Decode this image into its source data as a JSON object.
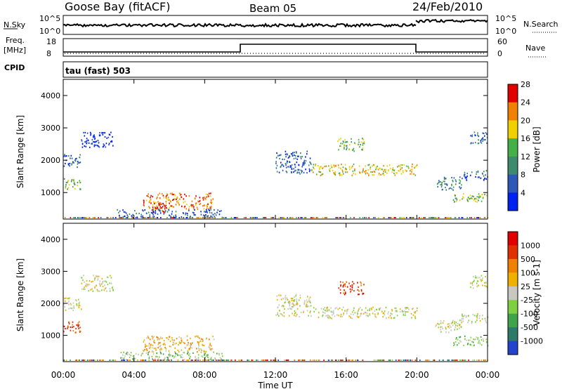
{
  "header": {
    "station": "Goose Bay (fitACF)",
    "beam": "Beam 05",
    "date": "24/Feb/2010"
  },
  "top_panels": {
    "nsky_label": "N.Sky",
    "nsky_ticks": [
      "10^5",
      "10^0"
    ],
    "nsearch_label": "N.Search",
    "nsearch_ticks": [
      "10^5",
      "10^0"
    ],
    "freq_label": "Freq.",
    "freq_unit": "[MHz]",
    "freq_ticks": [
      "18",
      "8"
    ],
    "nave_label": "Nave",
    "nave_ticks": [
      "60",
      "0"
    ],
    "cpid_label": "CPID",
    "cpid_value": "tau (fast) 503"
  },
  "chart_data": [
    {
      "type": "heatmap",
      "name": "power-panel",
      "ylabel": "Slant Range [km]",
      "xlim": [
        0,
        24
      ],
      "ylim": [
        180,
        4500
      ],
      "yticks": [
        "1000",
        "2000",
        "3000",
        "4000"
      ],
      "colorbar": {
        "label": "Power [dB]",
        "ticks": [
          "4",
          "8",
          "12",
          "16",
          "20",
          "24",
          "28"
        ],
        "colors": [
          "#0022ee",
          "#2e58b8",
          "#3e8a6e",
          "#46b048",
          "#f0d000",
          "#f08000",
          "#e00000"
        ]
      },
      "regions": [
        {
          "x": [
            0.0,
            1.0
          ],
          "y": [
            1100,
            1450
          ],
          "level": 3
        },
        {
          "x": [
            0.0,
            1.0
          ],
          "y": [
            1800,
            2200
          ],
          "level": 1
        },
        {
          "x": [
            1.0,
            2.8
          ],
          "y": [
            2400,
            2900
          ],
          "level": 0
        },
        {
          "x": [
            4.5,
            8.5
          ],
          "y": [
            500,
            1000
          ],
          "level": 5
        },
        {
          "x": [
            5.0,
            6.0
          ],
          "y": [
            400,
            700
          ],
          "level": 6
        },
        {
          "x": [
            3.0,
            9.0
          ],
          "y": [
            250,
            500
          ],
          "level": 1
        },
        {
          "x": [
            12.0,
            14.0
          ],
          "y": [
            1600,
            2300
          ],
          "level": 1
        },
        {
          "x": [
            14.0,
            20.0
          ],
          "y": [
            1550,
            1900
          ],
          "level": 4
        },
        {
          "x": [
            15.5,
            17.0
          ],
          "y": [
            2300,
            2700
          ],
          "level": 3
        },
        {
          "x": [
            21.0,
            22.5
          ],
          "y": [
            1100,
            1500
          ],
          "level": 2
        },
        {
          "x": [
            22.0,
            24.0
          ],
          "y": [
            700,
            1000
          ],
          "level": 3
        },
        {
          "x": [
            22.5,
            24.0
          ],
          "y": [
            1400,
            1700
          ],
          "level": 1
        },
        {
          "x": [
            23.0,
            24.0
          ],
          "y": [
            2500,
            2900
          ],
          "level": 1
        }
      ]
    },
    {
      "type": "heatmap",
      "name": "velocity-panel",
      "xlabel": "Time UT",
      "ylabel": "Slant Range [km]",
      "xlim": [
        0,
        24
      ],
      "ylim": [
        180,
        4500
      ],
      "xticks": [
        "00:00",
        "04:00",
        "08:00",
        "12:00",
        "16:00",
        "20:00",
        "00:00"
      ],
      "yticks": [
        "1000",
        "2000",
        "3000",
        "4000"
      ],
      "colorbar": {
        "label": "Velocity [m s-1]",
        "ticks": [
          "1000",
          "500",
          "100",
          "25",
          "-25",
          "-100",
          "-500",
          "-1000"
        ],
        "colors": [
          "#2244cc",
          "#2e7a6a",
          "#3fa34a",
          "#7fd040",
          "#c8c8c0",
          "#f0b000",
          "#f08000",
          "#e03000",
          "#e00000"
        ]
      },
      "regions": [
        {
          "x": [
            0.0,
            1.0
          ],
          "y": [
            1100,
            1450
          ],
          "level": 7
        },
        {
          "x": [
            0.0,
            1.0
          ],
          "y": [
            1800,
            2200
          ],
          "level": 4
        },
        {
          "x": [
            1.0,
            2.8
          ],
          "y": [
            2400,
            2900
          ],
          "level": 4
        },
        {
          "x": [
            4.5,
            8.5
          ],
          "y": [
            500,
            1000
          ],
          "level": 5
        },
        {
          "x": [
            3.0,
            9.0
          ],
          "y": [
            250,
            500
          ],
          "level": 3
        },
        {
          "x": [
            12.0,
            14.0
          ],
          "y": [
            1600,
            2300
          ],
          "level": 4
        },
        {
          "x": [
            14.0,
            20.0
          ],
          "y": [
            1550,
            1900
          ],
          "level": 4
        },
        {
          "x": [
            15.5,
            17.0
          ],
          "y": [
            2300,
            2700
          ],
          "level": 7
        },
        {
          "x": [
            21.0,
            22.5
          ],
          "y": [
            1100,
            1500
          ],
          "level": 4
        },
        {
          "x": [
            22.0,
            24.0
          ],
          "y": [
            700,
            1000
          ],
          "level": 3
        },
        {
          "x": [
            22.5,
            24.0
          ],
          "y": [
            1400,
            1700
          ],
          "level": 4
        },
        {
          "x": [
            23.0,
            24.0
          ],
          "y": [
            2500,
            2900
          ],
          "level": 4
        }
      ]
    }
  ]
}
